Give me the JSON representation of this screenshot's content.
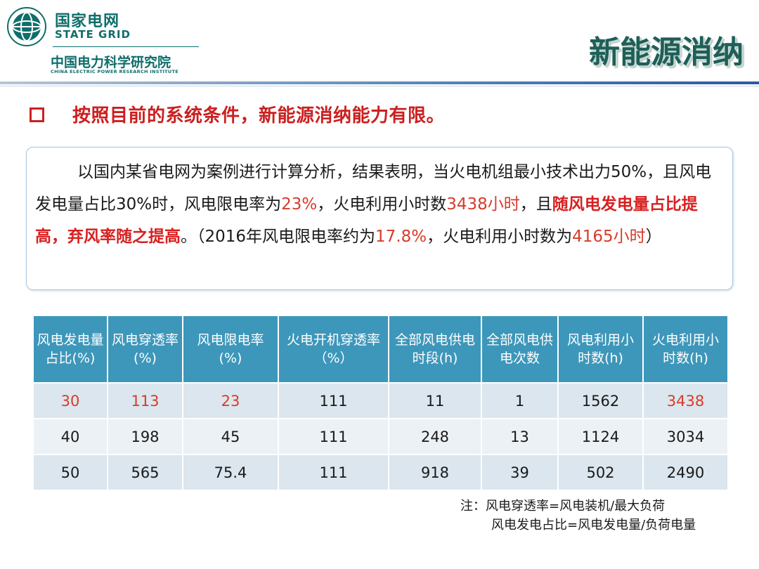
{
  "header": {
    "org_cn": "国家电网",
    "org_en": "STATE GRID",
    "institute_cn": "中国电力科学研究院",
    "institute_en": "CHINA ELECTRIC POWER RESEARCH INSTITUTE",
    "slide_title": "新能源消纳"
  },
  "colors": {
    "brand": "#0f6e6b",
    "accent_red": "#cc1f1f",
    "table_header": "#3d97ba"
  },
  "heading": "按照目前的系统条件，新能源消纳能力有限。",
  "paragraph": {
    "t1": "以国内某省电网为案例进行计算分析，结果表明，当火电机组最小技术出力50%，且风电发电量占比30%时，风电限电率为",
    "v1": "23%",
    "t2": "，火电利用小时数",
    "v2": "3438小时",
    "t3": "，且",
    "v3": "随风电发电量占比提高，弃风率随之提高",
    "t4": "。（2016年风电限电率约为",
    "v4": "17.8%",
    "t5": "，火电利用小时数为",
    "v5": "4165小时",
    "t6": "）"
  },
  "table": {
    "headers": [
      "风电发电量占比(%)",
      "风电穿透率(%)",
      "风电限电率(%)",
      "火电开机穿透率（%）",
      "全部风电供电时段(h)",
      "全部风电供电次数",
      "风电利用小时数(h)",
      "火电利用小时数(h)"
    ],
    "rows": [
      [
        "30",
        "113",
        "23",
        "111",
        "11",
        "1",
        "1562",
        "3438"
      ],
      [
        "40",
        "198",
        "45",
        "111",
        "248",
        "13",
        "1124",
        "3034"
      ],
      [
        "50",
        "565",
        "75.4",
        "111",
        "918",
        "39",
        "502",
        "2490"
      ]
    ]
  },
  "notes": {
    "line1": "注：风电穿透率=风电装机/最大负荷",
    "line2": "风电发电占比=风电发电量/负荷电量"
  }
}
